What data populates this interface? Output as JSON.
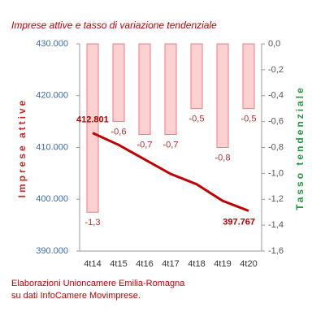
{
  "chart_data": {
    "type": "bar-line",
    "title": "Imprese attive e tasso di variazione tendenziale",
    "ylabel": "Imprese attive",
    "y2label": "Tasso tendenziale",
    "categories": [
      "4t14",
      "4t15",
      "4t16",
      "4t17",
      "4t18",
      "4t19",
      "4t20"
    ],
    "series": [
      {
        "type": "bar",
        "axis": "y2",
        "color": "#ffd0d0",
        "edge": "#e08080",
        "values": [
          -1.3,
          -0.6,
          -0.7,
          -0.7,
          -0.5,
          -0.8,
          -0.5
        ],
        "value_labels": [
          "-1,3",
          "-0,6",
          "-0,7",
          "-0,7",
          "-0,5",
          "-0,8",
          "-0,5"
        ]
      },
      {
        "type": "line",
        "axis": "y",
        "color": "#c00000",
        "values": [
          412801,
          410500,
          407700,
          404900,
          402900,
          399700,
          397767
        ],
        "value_labels": [
          "412.801",
          null,
          null,
          null,
          null,
          null,
          "397.767"
        ]
      }
    ],
    "ylim": [
      390000,
      430000
    ],
    "yticks": [
      {
        "value": 390000,
        "label": "390.000"
      },
      {
        "value": 400000,
        "label": "400.000"
      },
      {
        "value": 410000,
        "label": "410.000"
      },
      {
        "value": 420000,
        "label": "420.000"
      },
      {
        "value": 430000,
        "label": "430.000"
      }
    ],
    "y2lim": [
      -1.6,
      0
    ],
    "y2ticks": [
      {
        "value": -1.6,
        "label": "-1,6"
      },
      {
        "value": -1.4,
        "label": "-1,4"
      },
      {
        "value": -1.2,
        "label": "-1,2"
      },
      {
        "value": -1.0,
        "label": "-1,0"
      },
      {
        "value": -0.8,
        "label": "-0,8"
      },
      {
        "value": -0.6,
        "label": "-0,6"
      },
      {
        "value": -0.4,
        "label": "-0,4"
      },
      {
        "value": -0.2,
        "label": "-0,2"
      },
      {
        "value": 0,
        "label": "0,0"
      }
    ],
    "source": [
      "Elaborazioni Unioncamere Emilia-Romagna",
      "su dati InfoCamere Movimprese."
    ]
  }
}
